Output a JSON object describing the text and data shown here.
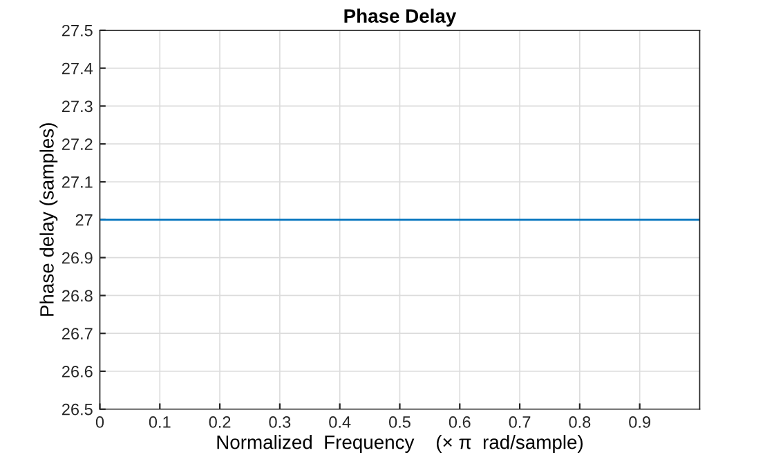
{
  "chart_data": {
    "type": "line",
    "title": "Phase Delay",
    "xlabel": "Normalized  Frequency    (× π  rad/sample)",
    "ylabel": "Phase delay (samples)",
    "x": [
      0,
      1
    ],
    "series": [
      {
        "color": "#0072bd",
        "values": [
          27,
          27
        ]
      }
    ],
    "xlim": [
      0,
      1
    ],
    "xticks": [
      0,
      0.1,
      0.2,
      0.3,
      0.4,
      0.5,
      0.6,
      0.7,
      0.8,
      0.9
    ],
    "ylim": [
      26.5,
      27.5
    ],
    "yticks": [
      26.5,
      26.6,
      26.7,
      26.8,
      26.9,
      27,
      27.1,
      27.2,
      27.3,
      27.4,
      27.5
    ],
    "grid": true,
    "legend": false
  }
}
